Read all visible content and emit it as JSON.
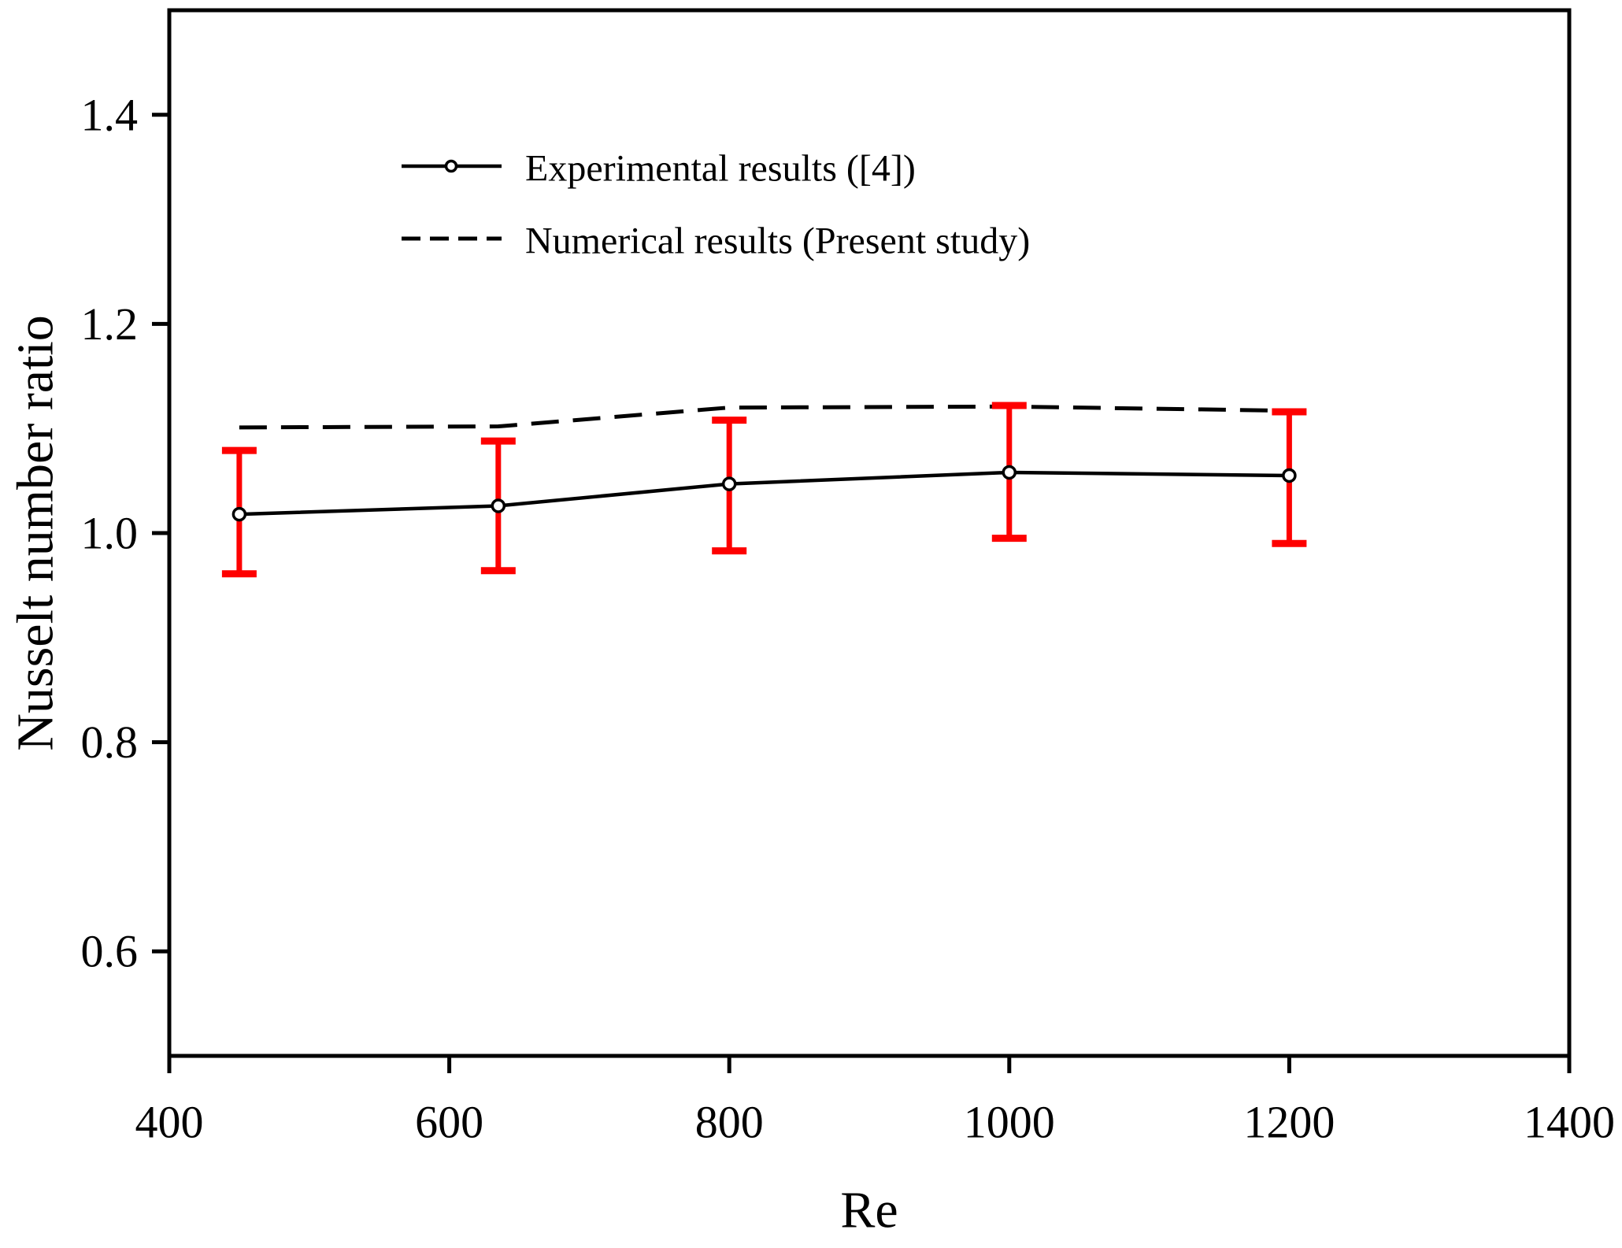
{
  "figure": {
    "background": "#ffffff",
    "xlabel": "Re",
    "ylabel": "Nusselt number ratio"
  },
  "legend": {
    "entries": [
      {
        "label": "Experimental results ([4])",
        "style": "solid-line-open-circle-marker"
      },
      {
        "label": "Numerical results (Present study)",
        "style": "dashed-line"
      }
    ]
  },
  "colors": {
    "axis": "#000000",
    "experimental_line": "#000000",
    "numerical_line": "#000000",
    "error_bar": "#fe0000",
    "marker_fill": "#ffffff"
  },
  "chart_data": {
    "type": "line",
    "title": "",
    "xlabel": "Re",
    "ylabel": "Nusselt number ratio",
    "xlim": [
      400,
      1400
    ],
    "ylim": [
      0.5,
      1.5
    ],
    "x_ticks": [
      400,
      600,
      800,
      1000,
      1200,
      1400
    ],
    "y_ticks": [
      0.6,
      0.8,
      1.0,
      1.2,
      1.4
    ],
    "grid": false,
    "legend_position": "upper-left-inside",
    "x": [
      450,
      635,
      800,
      1000,
      1200
    ],
    "series": [
      {
        "name": "Experimental results ([4])",
        "line_style": "solid",
        "color": "#000000",
        "marker": "open-circle",
        "values": [
          1.018,
          1.026,
          1.047,
          1.058,
          1.055
        ],
        "error_upper": [
          1.079,
          1.088,
          1.108,
          1.122,
          1.116
        ],
        "error_lower": [
          0.961,
          0.964,
          0.983,
          0.995,
          0.99
        ],
        "error_color": "#fe0000"
      },
      {
        "name": "Numerical results (Present study)",
        "line_style": "dashed",
        "color": "#000000",
        "marker": "none",
        "values": [
          1.101,
          1.102,
          1.12,
          1.121,
          1.117
        ]
      }
    ]
  }
}
